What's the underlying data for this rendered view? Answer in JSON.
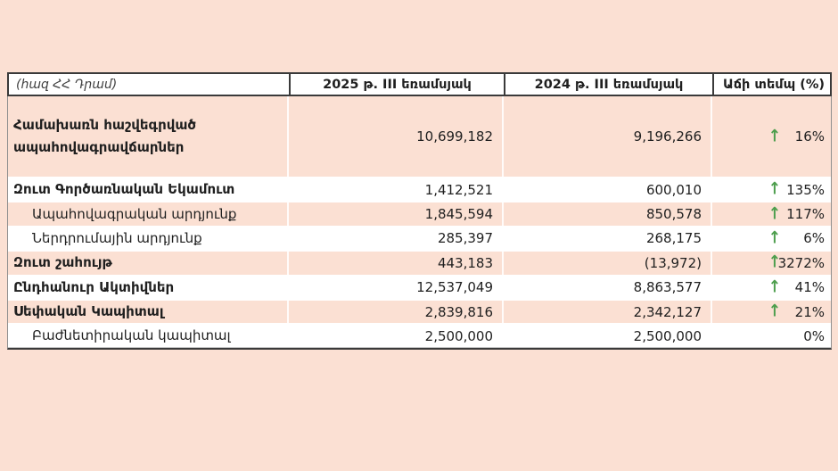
{
  "table": {
    "unit_note": "(հազ ՀՀ Դրամ)",
    "columns": [
      "2025 թ. III եռամսյակ",
      "2024 թ. III եռամսյակ",
      "Աճի տեմպ (%)"
    ],
    "arrow_icon": "↑",
    "rows": [
      {
        "label": "Համախառն հաշվեգրված ապահովագրավճարներ",
        "bold": true,
        "indent": false,
        "v2025": "10,699,182",
        "v2024": "9,196,266",
        "growth": "16%",
        "arrow": true,
        "shaded": true,
        "tall": true
      },
      {
        "label": "Զուտ Գործառնական Եկամուտ",
        "bold": true,
        "indent": false,
        "v2025": "1,412,521",
        "v2024": "600,010",
        "growth": "135%",
        "arrow": true,
        "shaded": false,
        "tall": false
      },
      {
        "label": "Ապահովագրական արդյունք",
        "bold": false,
        "indent": true,
        "v2025": "1,845,594",
        "v2024": "850,578",
        "growth": "117%",
        "arrow": true,
        "shaded": true,
        "tall": false
      },
      {
        "label": "Ներդրումային արդյունք",
        "bold": false,
        "indent": true,
        "v2025": "285,397",
        "v2024": "268,175",
        "growth": "6%",
        "arrow": true,
        "shaded": false,
        "tall": false
      },
      {
        "label": "Զուտ շահույթ",
        "bold": true,
        "indent": false,
        "v2025": "443,183",
        "v2024": "(13,972)",
        "growth": "3272%",
        "arrow": true,
        "shaded": true,
        "tall": false
      },
      {
        "label": "Ընդհանուր Ակտիվներ",
        "bold": true,
        "indent": false,
        "v2025": "12,537,049",
        "v2024": "8,863,577",
        "growth": "41%",
        "arrow": true,
        "shaded": false,
        "tall": false
      },
      {
        "label": "Սեփական Կապիտալ",
        "bold": true,
        "indent": false,
        "v2025": "2,839,816",
        "v2024": "2,342,127",
        "growth": "21%",
        "arrow": true,
        "shaded": true,
        "tall": false
      },
      {
        "label": "Բաժնետիրական կապիտալ",
        "bold": false,
        "indent": true,
        "v2025": "2,500,000",
        "v2024": "2,500,000",
        "growth": "0%",
        "arrow": false,
        "shaded": false,
        "tall": false
      }
    ],
    "colors": {
      "page_peach": "#fbe0d3",
      "arrow_green": "#4d9e4d",
      "border_dark": "#3a3a3a",
      "text": "#1f1f1f"
    }
  }
}
